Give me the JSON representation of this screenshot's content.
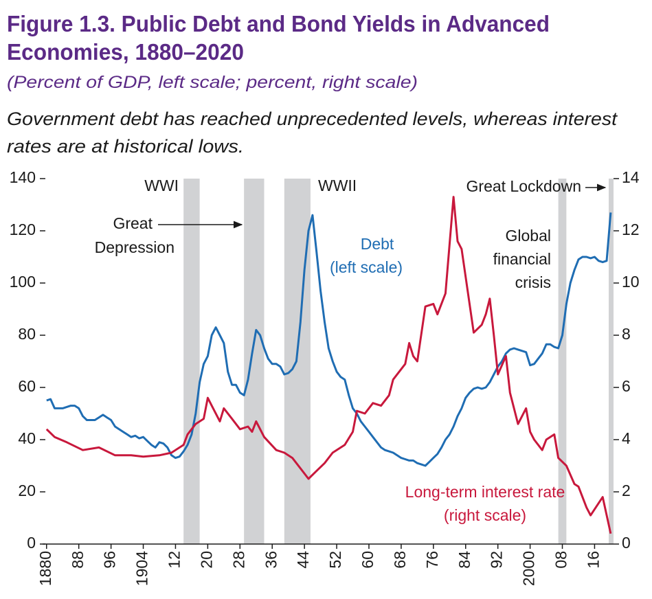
{
  "chart_data": {
    "type": "line",
    "title": [
      "Figure 1.3. Public Debt and Bond Yields in Advanced",
      "Economies, 1880–2020"
    ],
    "subtitle": "(Percent of GDP, left scale; percent, right scale)",
    "lead": [
      "Government debt has reached unprecedented levels, whereas interest",
      "rates are at historical lows."
    ],
    "xlim": [
      1879.7,
      2020.7
    ],
    "xticks": [
      1880,
      {
        "value": 1888,
        "label": "88"
      },
      {
        "value": 1896,
        "label": "96"
      },
      1904,
      {
        "value": 1912,
        "label": "12"
      },
      {
        "value": 1920,
        "label": "20"
      },
      {
        "value": 1928,
        "label": "28"
      },
      {
        "value": 1936,
        "label": "36"
      },
      {
        "value": 1944,
        "label": "44"
      },
      {
        "value": 1952,
        "label": "52"
      },
      {
        "value": 1960,
        "label": "60"
      },
      {
        "value": 1968,
        "label": "68"
      },
      {
        "value": 1976,
        "label": "76"
      },
      {
        "value": 1984,
        "label": "84"
      },
      {
        "value": 1992,
        "label": "92"
      },
      2000,
      {
        "value": 2008,
        "label": "08"
      },
      {
        "value": 2016,
        "label": "16"
      }
    ],
    "ylim": [
      0,
      140
    ],
    "yticks": [
      0,
      20,
      40,
      60,
      80,
      100,
      120,
      140
    ],
    "y2lim": [
      0,
      14
    ],
    "y2ticks": [
      0,
      2,
      4,
      6,
      8,
      10,
      12,
      14
    ],
    "shaded_periods": [
      {
        "start": 1914,
        "end": 1918,
        "label": [
          "WWI"
        ]
      },
      {
        "start": 1929,
        "end": 1934,
        "label": [
          "Great",
          "Depression"
        ]
      },
      {
        "start": 1939,
        "end": 1945.5,
        "label": [
          "WWII"
        ]
      },
      {
        "start": 2007,
        "end": 2009,
        "label": [
          "Global",
          "financial",
          "crisis"
        ]
      },
      {
        "start": 2019.5,
        "end": 2021,
        "label": [
          "Great Lockdown"
        ]
      }
    ],
    "shade_color": "#d1d2d4",
    "series": [
      {
        "name": "Debt",
        "scale_label": "(left scale)",
        "color": "#1f6db3",
        "axis": "y",
        "x": [
          1880,
          1881,
          1882,
          1884,
          1886,
          1887,
          1888,
          1889,
          1890,
          1892,
          1893,
          1894,
          1895,
          1896,
          1897,
          1899,
          1900,
          1901,
          1902,
          1903,
          1904,
          1905,
          1906,
          1907,
          1908,
          1909,
          1910,
          1911,
          1912,
          1913,
          1914,
          1915,
          1916,
          1917,
          1918,
          1919,
          1920,
          1921,
          1922,
          1923,
          1924,
          1925,
          1926,
          1927,
          1928,
          1929,
          1930,
          1931,
          1932,
          1933,
          1934,
          1935,
          1936,
          1937,
          1938,
          1939,
          1940,
          1941,
          1942,
          1943,
          1944,
          1945,
          1946,
          1947,
          1948,
          1949,
          1950,
          1951,
          1952,
          1953,
          1954,
          1955,
          1956,
          1957,
          1958,
          1959,
          1960,
          1961,
          1962,
          1963,
          1964,
          1965,
          1966,
          1967,
          1968,
          1969,
          1970,
          1971,
          1972,
          1973,
          1974,
          1975,
          1976,
          1977,
          1978,
          1979,
          1980,
          1981,
          1982,
          1983,
          1984,
          1985,
          1986,
          1987,
          1988,
          1989,
          1990,
          1991,
          1992,
          1993,
          1994,
          1995,
          1996,
          1997,
          1998,
          1999,
          2000,
          2001,
          2002,
          2003,
          2004,
          2005,
          2006,
          2007,
          2008,
          2009,
          2010,
          2011,
          2012,
          2013,
          2014,
          2015,
          2016,
          2017,
          2018,
          2019,
          2020
        ],
        "values": [
          55,
          55.5,
          52,
          52,
          53,
          53,
          52,
          49,
          47.5,
          47.5,
          48.5,
          49.5,
          48.5,
          47.5,
          45,
          43,
          42,
          41,
          41.5,
          40.5,
          41,
          39.5,
          38,
          37,
          39,
          38.5,
          37,
          34,
          33,
          33.5,
          35.5,
          38,
          42,
          50,
          62,
          69,
          72,
          80,
          83,
          80,
          77,
          66,
          61,
          61,
          58,
          57,
          63,
          73,
          82,
          80,
          75,
          71,
          69,
          69,
          68,
          65,
          65.5,
          67,
          70,
          85,
          105,
          120,
          126,
          112,
          97,
          85,
          75,
          70,
          66,
          64,
          63,
          57,
          52,
          50,
          47,
          45,
          43,
          41,
          39,
          37,
          36,
          35.5,
          35,
          34,
          33,
          32.5,
          32,
          32,
          31,
          30.5,
          30,
          31.5,
          33,
          34.5,
          37,
          40,
          42,
          45,
          49,
          52,
          56,
          58,
          59.5,
          60,
          59.5,
          60,
          62,
          65,
          68,
          70,
          73,
          74.5,
          75,
          74.5,
          74,
          73.5,
          68.5,
          69,
          71,
          73,
          76.5,
          76.5,
          75.5,
          75,
          80,
          92,
          100,
          105,
          109,
          110,
          110,
          109.5,
          110,
          108.5,
          108,
          108.5,
          127
        ]
      },
      {
        "name": "Long-term interest rate",
        "scale_label": "(right scale)",
        "color": "#c8183c",
        "axis": "y2",
        "x": [
          1880,
          1882,
          1885,
          1889,
          1893,
          1897,
          1901,
          1904,
          1908,
          1911,
          1914,
          1915,
          1917,
          1919,
          1920,
          1921,
          1923,
          1924,
          1926,
          1928,
          1930,
          1931,
          1932,
          1934,
          1937,
          1939,
          1941,
          1943,
          1945,
          1947,
          1949,
          1951,
          1954,
          1956,
          1957,
          1959,
          1961,
          1963,
          1965,
          1966,
          1969,
          1970,
          1971,
          1972,
          1974,
          1976,
          1977,
          1979,
          1981,
          1982,
          1983,
          1986,
          1988,
          1989,
          1990,
          1991,
          1992,
          1994,
          1995,
          1997,
          1999,
          2000,
          2001,
          2003,
          2004,
          2006,
          2007,
          2009,
          2011,
          2012,
          2014,
          2015,
          2018,
          2020
        ],
        "values": [
          4.4,
          4.1,
          3.9,
          3.6,
          3.7,
          3.4,
          3.4,
          3.35,
          3.4,
          3.5,
          3.8,
          4.2,
          4.6,
          4.8,
          5.6,
          5.3,
          4.7,
          5.2,
          4.8,
          4.4,
          4.5,
          4.3,
          4.7,
          4.1,
          3.6,
          3.5,
          3.3,
          2.9,
          2.5,
          2.8,
          3.1,
          3.5,
          3.8,
          4.3,
          5.1,
          5.0,
          5.4,
          5.3,
          5.7,
          6.3,
          6.9,
          7.7,
          7.2,
          7.0,
          9.1,
          9.2,
          8.8,
          9.6,
          13.3,
          11.6,
          11.3,
          8.1,
          8.4,
          8.8,
          9.4,
          8.0,
          6.5,
          7.2,
          5.8,
          4.6,
          5.2,
          4.3,
          4.0,
          3.6,
          4.0,
          4.2,
          3.3,
          3.0,
          2.3,
          2.2,
          1.4,
          1.1,
          1.8,
          0.4
        ]
      }
    ]
  }
}
